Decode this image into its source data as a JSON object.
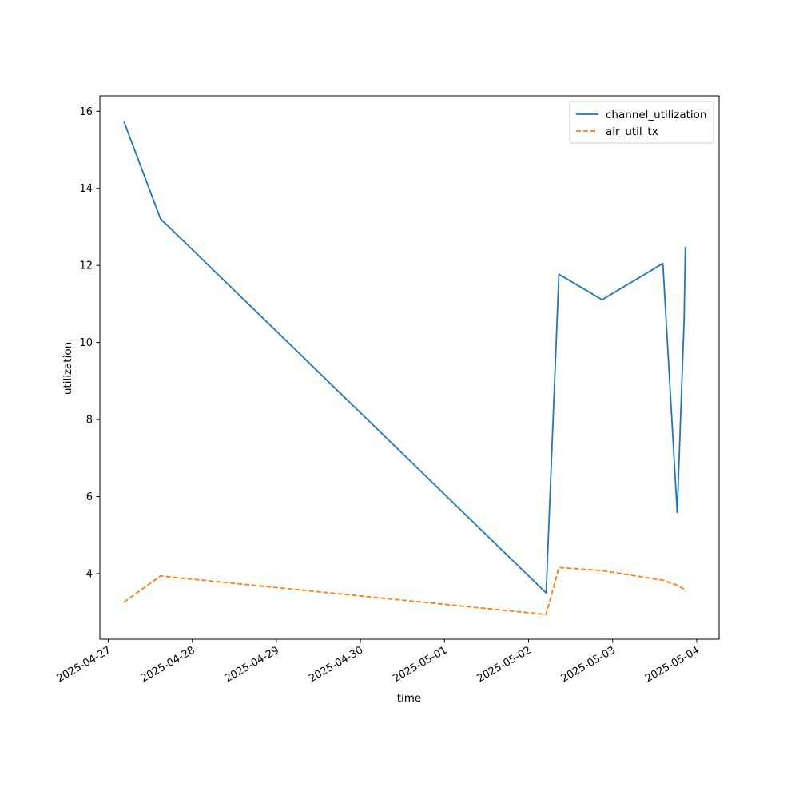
{
  "chart_data": {
    "type": "line",
    "xlabel": "time",
    "ylabel": "utilization",
    "x_tick_labels": [
      "2025-04-27",
      "2025-04-28",
      "2025-04-29",
      "2025-04-30",
      "2025-05-01",
      "2025-05-02",
      "2025-05-03",
      "2025-05-04"
    ],
    "y_ticks": [
      4,
      6,
      8,
      10,
      12,
      14,
      16
    ],
    "xlim": [
      "2025-04-26T21:36",
      "2025-05-04T06:24"
    ],
    "ylim": [
      2.3,
      16.4
    ],
    "grid": false,
    "legend_position": "top-right",
    "series": [
      {
        "name": "channel_utilization",
        "color": "#1f77b4",
        "line_style": "solid",
        "points": [
          {
            "x": "2025-04-27T04:30",
            "y": 15.73
          },
          {
            "x": "2025-04-27T14:55",
            "y": 13.21
          },
          {
            "x": "2025-05-02T05:00",
            "y": 3.5
          },
          {
            "x": "2025-05-02T08:40",
            "y": 11.77
          },
          {
            "x": "2025-05-02T21:00",
            "y": 11.11
          },
          {
            "x": "2025-05-03T14:20",
            "y": 12.05
          },
          {
            "x": "2025-05-03T18:25",
            "y": 5.59
          },
          {
            "x": "2025-05-03T20:25",
            "y": 10.6
          },
          {
            "x": "2025-05-03T20:45",
            "y": 12.48
          }
        ]
      },
      {
        "name": "air_util_tx",
        "color": "#ff7f0e",
        "line_style": "dashed",
        "points": [
          {
            "x": "2025-04-27T04:30",
            "y": 3.26
          },
          {
            "x": "2025-04-27T14:55",
            "y": 3.94
          },
          {
            "x": "2025-05-02T05:00",
            "y": 2.94
          },
          {
            "x": "2025-05-02T08:40",
            "y": 4.16
          },
          {
            "x": "2025-05-02T21:00",
            "y": 4.08
          },
          {
            "x": "2025-05-03T14:20",
            "y": 3.83
          },
          {
            "x": "2025-05-03T18:25",
            "y": 3.7
          },
          {
            "x": "2025-05-03T20:25",
            "y": 3.6
          },
          {
            "x": "2025-05-03T20:45",
            "y": 3.54
          }
        ]
      }
    ]
  }
}
